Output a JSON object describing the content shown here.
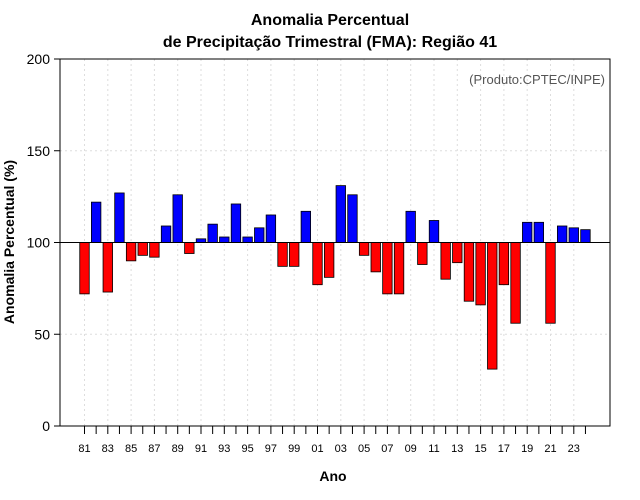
{
  "chart_data": {
    "type": "bar",
    "title_line1": "Anomalia Percentual",
    "title_line2": "de Precipitação Trimestral (FMA): Região 41",
    "xlabel": "Ano",
    "ylabel": "Anomalia Percentual (%)",
    "credit": "(Produto:CPTEC/INPE)",
    "baseline": 100,
    "ylim": [
      0,
      200
    ],
    "yticks": [
      0,
      50,
      100,
      150,
      200
    ],
    "grid": true,
    "positive_color": "#0000ff",
    "negative_color": "#ff0000",
    "years": [
      1981,
      1982,
      1983,
      1984,
      1985,
      1986,
      1987,
      1988,
      1989,
      1990,
      1991,
      1992,
      1993,
      1994,
      1995,
      1996,
      1997,
      1998,
      1999,
      2000,
      2001,
      2002,
      2003,
      2004,
      2005,
      2006,
      2007,
      2008,
      2009,
      2010,
      2011,
      2012,
      2013,
      2014,
      2015,
      2016,
      2017,
      2018,
      2019,
      2020,
      2021,
      2022,
      2023,
      2024
    ],
    "xtick_labels": [
      "81",
      "83",
      "85",
      "87",
      "89",
      "91",
      "93",
      "95",
      "97",
      "99",
      "01",
      "03",
      "05",
      "07",
      "09",
      "11",
      "13",
      "15",
      "17",
      "19",
      "21",
      "23"
    ],
    "values": [
      72,
      122,
      73,
      127,
      90,
      93,
      92,
      109,
      126,
      94,
      102,
      110,
      103,
      121,
      103,
      108,
      115,
      87,
      87,
      117,
      77,
      81,
      131,
      126,
      93,
      84,
      72,
      72,
      117,
      88,
      112,
      80,
      89,
      68,
      66,
      31,
      77,
      56,
      111,
      111,
      56,
      109,
      108,
      107
    ]
  }
}
